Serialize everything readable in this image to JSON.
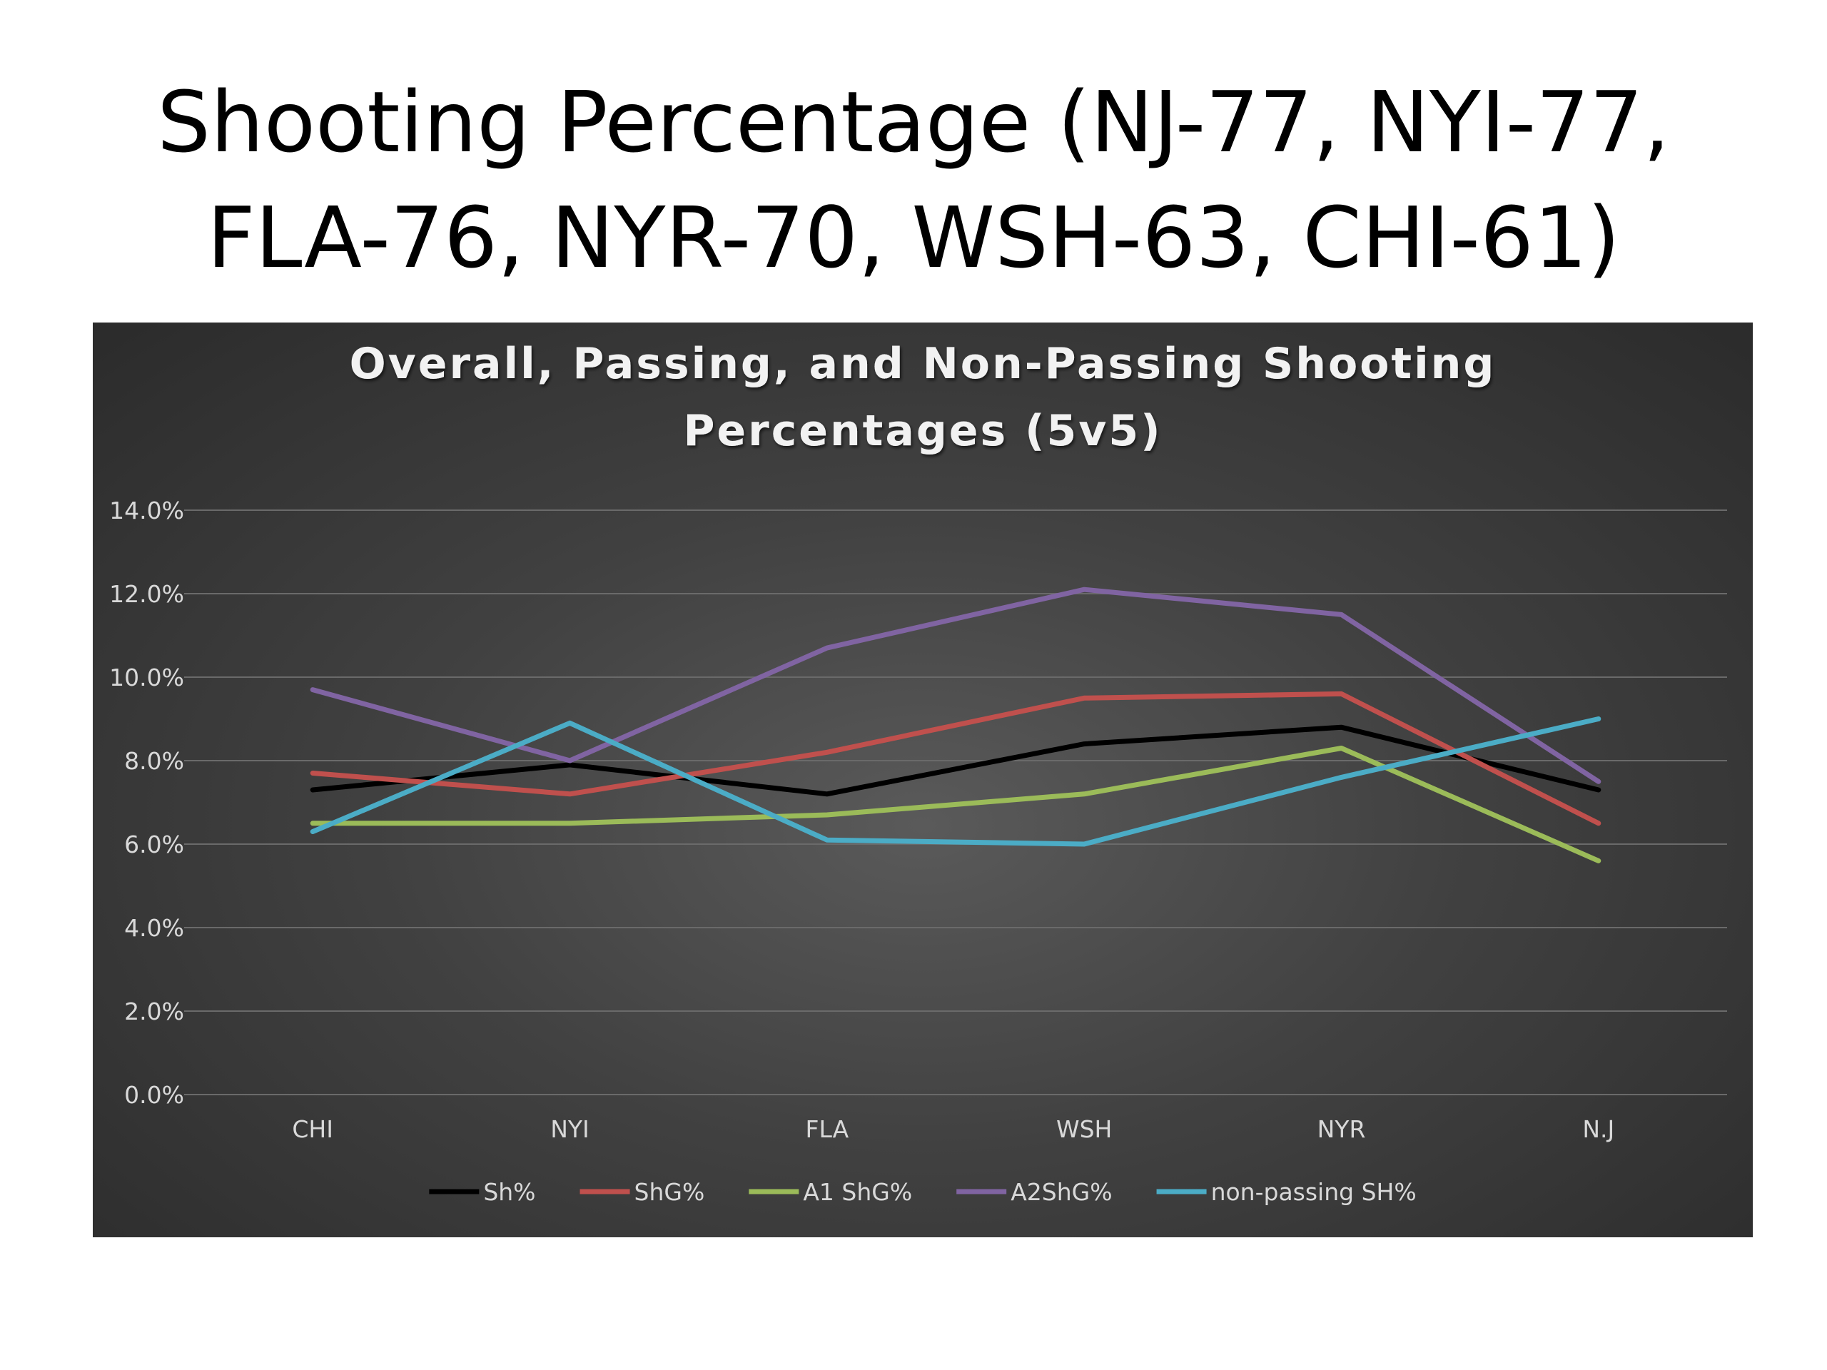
{
  "slide": {
    "title_line1": "Shooting Percentage (NJ-77, NYI-77,",
    "title_line2": "FLA-76, NYR-70, WSH-63, CHI-61)"
  },
  "chart_data": {
    "type": "line",
    "title_line1": "Overall, Passing, and Non-Passing Shooting",
    "title_line2": "Percentages (5v5)",
    "categories": [
      "CHI",
      "NYI",
      "FLA",
      "WSH",
      "NYR",
      "N.J"
    ],
    "ylim": [
      0,
      14
    ],
    "y_ticks": [
      "0.0%",
      "2.0%",
      "4.0%",
      "6.0%",
      "8.0%",
      "10.0%",
      "12.0%",
      "14.0%"
    ],
    "grid": true,
    "legend_position": "bottom",
    "series": [
      {
        "name": "Sh%",
        "color": "#000000",
        "values": [
          7.3,
          7.9,
          7.2,
          8.4,
          8.8,
          7.3
        ]
      },
      {
        "name": "ShG%",
        "color": "#c0504d",
        "values": [
          7.7,
          7.2,
          8.2,
          9.5,
          9.6,
          6.5
        ]
      },
      {
        "name": "A1 ShG%",
        "color": "#9bbb59",
        "values": [
          6.5,
          6.5,
          6.7,
          7.2,
          8.3,
          5.6
        ]
      },
      {
        "name": "A2ShG%",
        "color": "#8064a2",
        "values": [
          9.7,
          8.0,
          10.7,
          12.1,
          11.5,
          7.5
        ]
      },
      {
        "name": "non-passing SH%",
        "color": "#4bacc6",
        "values": [
          6.3,
          8.9,
          6.1,
          6.0,
          7.6,
          9.0
        ]
      }
    ]
  }
}
